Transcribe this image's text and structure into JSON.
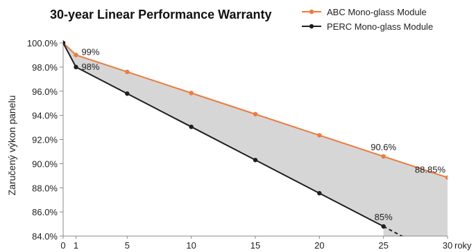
{
  "chart_data": {
    "type": "line",
    "title": "30-year Linear Performance Warranty",
    "ylabel": "Zaručený výkon panelu",
    "x_unit_label": "roky",
    "ylim": [
      84,
      100
    ],
    "xlim": [
      0,
      30
    ],
    "x_ticks": [
      0,
      1,
      5,
      10,
      15,
      20,
      25,
      30
    ],
    "y_ticks": [
      84,
      86,
      88,
      90,
      92,
      94,
      96,
      98,
      100
    ],
    "y_tick_labels": [
      "84.0%",
      "86.0%",
      "88.0%",
      "90.0%",
      "92.0%",
      "94.0%",
      "96.0%",
      "98.0%",
      "100.0%"
    ],
    "grid": false,
    "legend_position": "top-right",
    "series": [
      {
        "name": "ABC Mono-glass Module",
        "color": "#f07a3c",
        "points": [
          [
            0,
            100
          ],
          [
            1,
            99
          ],
          [
            5,
            97.6
          ],
          [
            10,
            95.85
          ],
          [
            15,
            94.1
          ],
          [
            20,
            92.35
          ],
          [
            25,
            90.6
          ],
          [
            30,
            88.85
          ]
        ]
      },
      {
        "name": "PERC Mono-glass Module",
        "color": "#1e1e1e",
        "points": [
          [
            0,
            100
          ],
          [
            1,
            98
          ],
          [
            5,
            95.8
          ],
          [
            10,
            93.05
          ],
          [
            15,
            90.3
          ],
          [
            20,
            87.55
          ],
          [
            25,
            84.8
          ]
        ],
        "dashed_extension": [
          [
            25,
            84.8
          ],
          [
            26.6,
            83.9
          ]
        ]
      }
    ],
    "annotations": [
      {
        "text": "99%",
        "x": 1,
        "y": 99
      },
      {
        "text": "98%",
        "x": 1,
        "y": 98
      },
      {
        "text": "90.6%",
        "x": 25,
        "y": 90.6
      },
      {
        "text": "88.85%",
        "x": 30,
        "y": 88.85
      },
      {
        "text": "85%",
        "x": 25,
        "y": 84.8
      }
    ],
    "fill_between": {
      "color": "#d6d6d6"
    }
  }
}
